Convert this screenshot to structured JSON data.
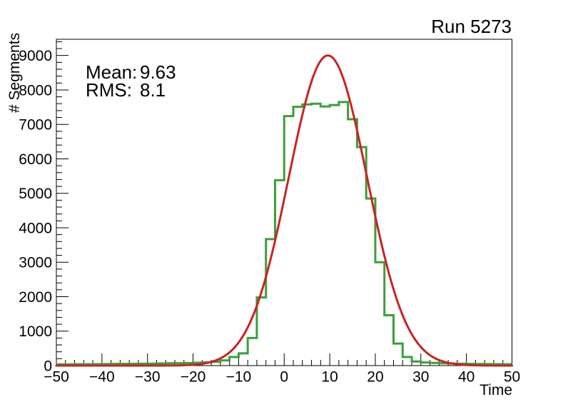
{
  "title": "Run 5273",
  "stats": {
    "mean_label": "Mean:",
    "mean_value": "9.63",
    "rms_label": "RMS:",
    "rms_value": "8.1"
  },
  "axes": {
    "x": {
      "title": "Time",
      "min": -50,
      "max": 50,
      "major_tick_values": [
        -50,
        -40,
        -30,
        -20,
        -10,
        0,
        10,
        20,
        30,
        40,
        50
      ],
      "major_tick_labels": [
        "−50",
        "−40",
        "−30",
        "−20",
        "−10",
        "0",
        "10",
        "20",
        "30",
        "40",
        "50"
      ],
      "minor_tick_step": 2
    },
    "y": {
      "title": "# Segments",
      "min": 0,
      "max": 9470,
      "major_tick_values": [
        0,
        1000,
        2000,
        3000,
        4000,
        5000,
        6000,
        7000,
        8000,
        9000
      ],
      "major_tick_labels": [
        "0",
        "1000",
        "2000",
        "3000",
        "4000",
        "5000",
        "6000",
        "7000",
        "8000",
        "9000"
      ],
      "minor_tick_step": 200
    }
  },
  "chart_data": {
    "type": "histogram_with_gaussian_fit",
    "title": "Run 5273",
    "xlabel": "Time",
    "ylabel": "# Segments",
    "xlim": [
      -50,
      50
    ],
    "ylim": [
      0,
      9470
    ],
    "grid": false,
    "legend": false,
    "histogram": {
      "bin_start": -50,
      "bin_width": 2,
      "values": [
        35,
        35,
        38,
        40,
        42,
        45,
        48,
        50,
        52,
        55,
        58,
        62,
        66,
        70,
        75,
        82,
        92,
        110,
        150,
        250,
        355,
        800,
        1980,
        3670,
        5380,
        7240,
        7510,
        7580,
        7600,
        7520,
        7560,
        7650,
        7150,
        6340,
        4850,
        3000,
        1460,
        640,
        250,
        120,
        90,
        78,
        68,
        60,
        55,
        50,
        47,
        44,
        42,
        40
      ]
    },
    "fit": {
      "shape": "gaussian",
      "amplitude": 9000,
      "mean": 9.6,
      "sigma": 8.6
    }
  },
  "colors": {
    "histogram": "#3a9f3a",
    "fit": "#cc2222",
    "frame": "#000000",
    "text": "#000000",
    "background": "#ffffff"
  }
}
